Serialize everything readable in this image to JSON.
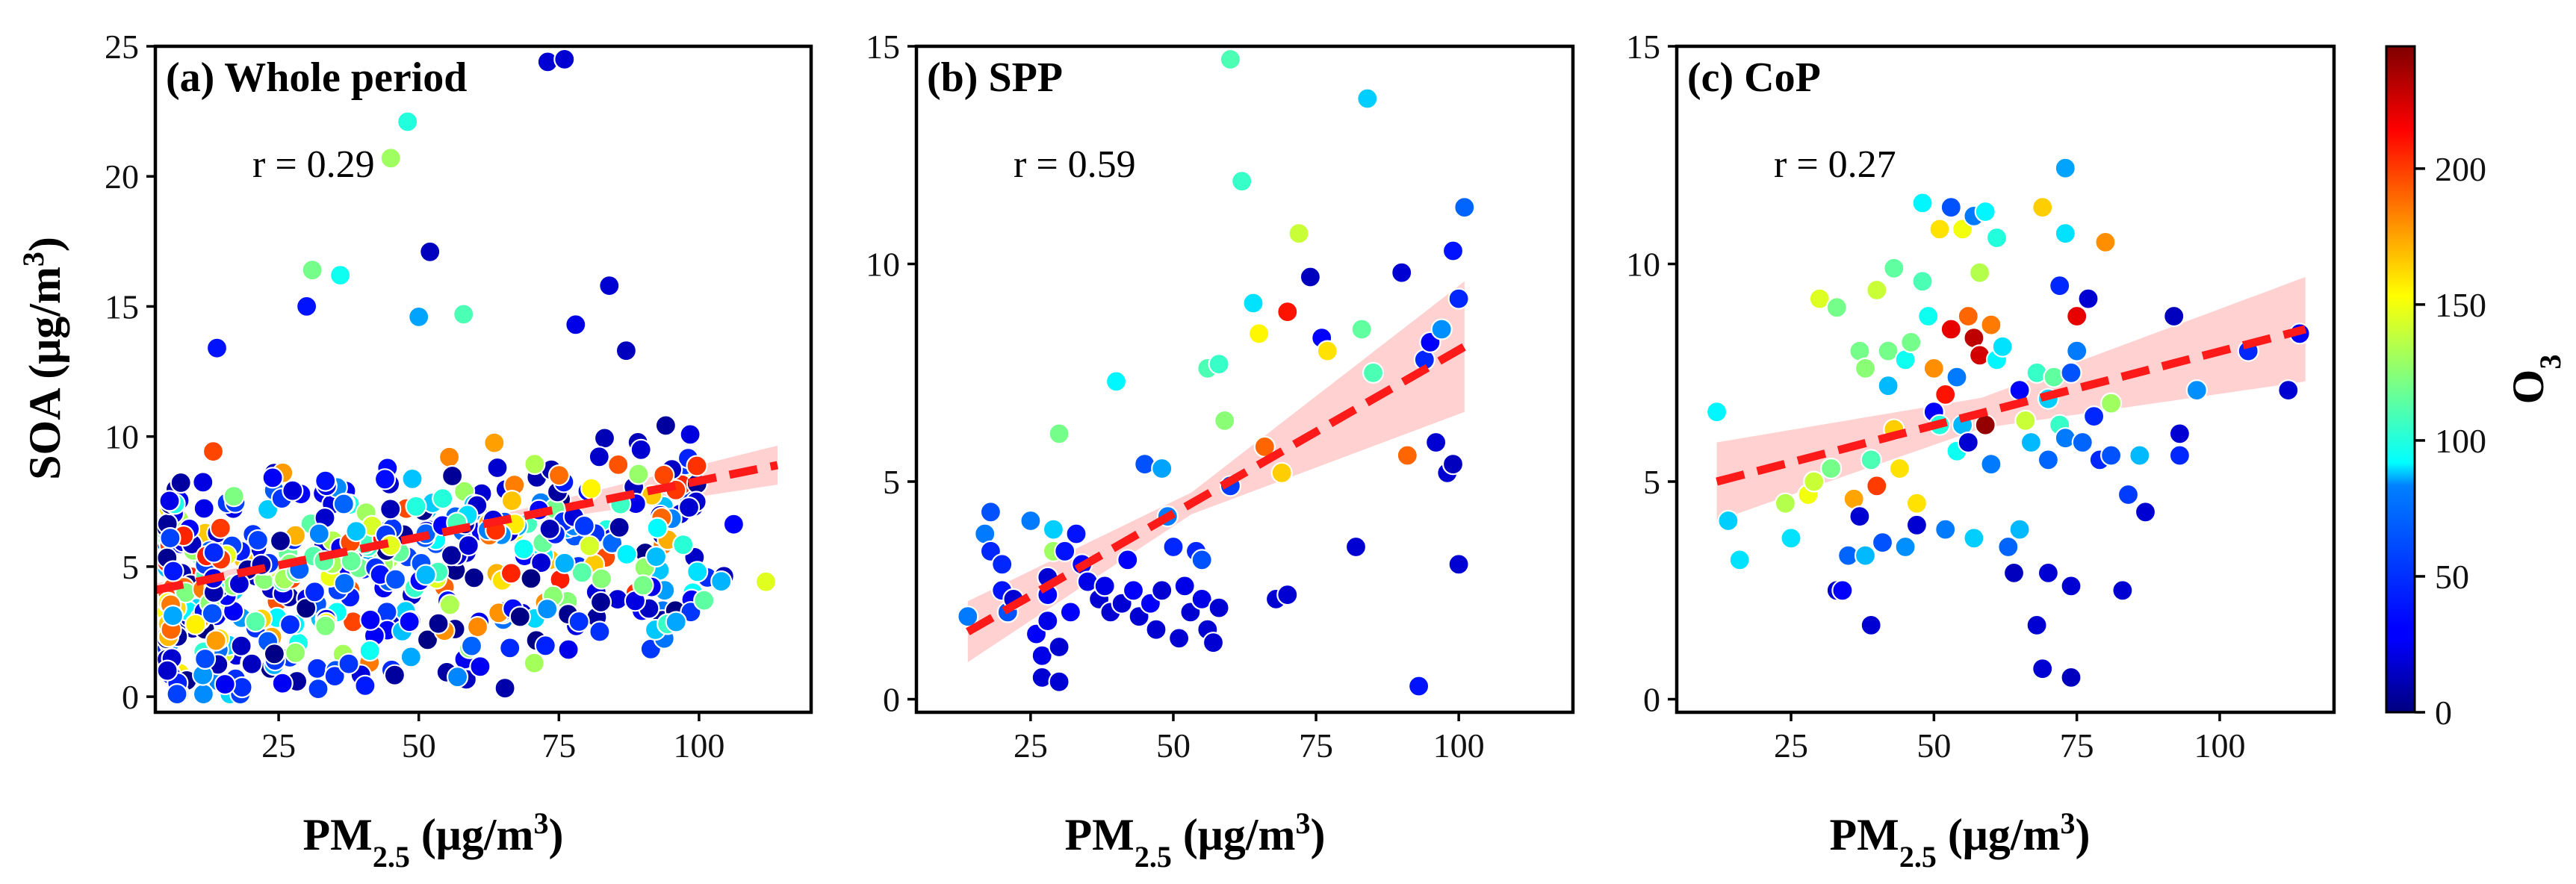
{
  "colors": {
    "regression_line": "#ff1a1a",
    "confidence_band": "#ffb8b8",
    "marker_edge": "#ffffff",
    "axis": "#000000"
  },
  "colorbar": {
    "label": "O",
    "label_sub": "3",
    "min": 0,
    "max": 245,
    "ticks": [
      "0",
      "50",
      "100",
      "150",
      "200"
    ],
    "tick_values": [
      0,
      50,
      100,
      150,
      200
    ],
    "colormap": "jet"
  },
  "axis_labels": {
    "y_main": "SOA (μg/m",
    "y_sup": "3",
    "y_close": ")",
    "x_pm": "PM",
    "x_sub": "2.5",
    "x_unit": " (μg/m",
    "x_sup": "3",
    "x_close": ")"
  },
  "chart_data": [
    {
      "type": "scatter",
      "title": "(a) Whole period",
      "r_label": "r = 0.29",
      "xlim": [
        3,
        120
      ],
      "ylim": [
        -0.6,
        25
      ],
      "xticks": [
        25,
        50,
        75,
        100
      ],
      "yticks": [
        0,
        5,
        10,
        15,
        20,
        25
      ],
      "regression": {
        "x0": 3,
        "y0": 4.1,
        "x1": 114,
        "y1": 8.9,
        "ci_half_start": 0.25,
        "ci_half_mid": 0.12,
        "ci_half_end": 0.75
      },
      "n_points": 520,
      "x_range": [
        5,
        115
      ],
      "outliers": [
        [
          45,
          20.7,
          130
        ],
        [
          48,
          22.1,
          100
        ],
        [
          73,
          24.4,
          20
        ],
        [
          76,
          24.5,
          20
        ],
        [
          52,
          17.1,
          15
        ],
        [
          31,
          16.4,
          120
        ],
        [
          36,
          16.2,
          95
        ],
        [
          30,
          15,
          35
        ],
        [
          58,
          14.7,
          110
        ],
        [
          50,
          14.6,
          70
        ],
        [
          14,
          13.4,
          35
        ],
        [
          78,
          14.3,
          25
        ],
        [
          84,
          15.8,
          20
        ],
        [
          87,
          13.3,
          15
        ]
      ],
      "seed": 11
    },
    {
      "type": "scatter",
      "title": "(b) SPP",
      "r_label": "r = 0.59",
      "xlim": [
        5,
        120
      ],
      "ylim": [
        -0.3,
        15
      ],
      "xticks": [
        25,
        50,
        75,
        100
      ],
      "yticks": [
        0,
        5,
        10,
        15
      ],
      "regression": {
        "x0": 14,
        "y0": 1.55,
        "x1": 101,
        "y1": 8.1,
        "ci_half_start": 0.7,
        "ci_half_mid": 0.25,
        "ci_half_end": 1.5
      },
      "points": [
        [
          14,
          1.9,
          60
        ],
        [
          17,
          3.8,
          60
        ],
        [
          18,
          4.3,
          50
        ],
        [
          18,
          3.4,
          40
        ],
        [
          20,
          3.1,
          40
        ],
        [
          20,
          2.5,
          35
        ],
        [
          21,
          2.0,
          50
        ],
        [
          22,
          2.3,
          20
        ],
        [
          25,
          4.1,
          60
        ],
        [
          26,
          1.5,
          30
        ],
        [
          27,
          1.0,
          25
        ],
        [
          27,
          0.5,
          20
        ],
        [
          28,
          2.8,
          20
        ],
        [
          28,
          2.4,
          30
        ],
        [
          28,
          1.8,
          25
        ],
        [
          29,
          3.9,
          80
        ],
        [
          29,
          3.4,
          130
        ],
        [
          30,
          0.4,
          20
        ],
        [
          30,
          1.2,
          20
        ],
        [
          30,
          6.1,
          120
        ],
        [
          31,
          3.4,
          35
        ],
        [
          32,
          2.0,
          30
        ],
        [
          33,
          3.8,
          35
        ],
        [
          34,
          3.1,
          30
        ],
        [
          35,
          2.7,
          25
        ],
        [
          37,
          2.3,
          20
        ],
        [
          38,
          2.6,
          25
        ],
        [
          39,
          2.0,
          20
        ],
        [
          40,
          7.3,
          90
        ],
        [
          41,
          2.2,
          20
        ],
        [
          42,
          3.2,
          30
        ],
        [
          43,
          2.5,
          30
        ],
        [
          44,
          1.9,
          20
        ],
        [
          45,
          5.4,
          50
        ],
        [
          46,
          2.2,
          30
        ],
        [
          47,
          1.6,
          20
        ],
        [
          48,
          2.5,
          20
        ],
        [
          48,
          5.3,
          70
        ],
        [
          49,
          4.2,
          60
        ],
        [
          50,
          3.5,
          40
        ],
        [
          51,
          1.4,
          20
        ],
        [
          52,
          2.6,
          25
        ],
        [
          53,
          2.0,
          20
        ],
        [
          54,
          3.4,
          40
        ],
        [
          55,
          2.3,
          25
        ],
        [
          55,
          3.2,
          50
        ],
        [
          56,
          1.6,
          20
        ],
        [
          56,
          7.6,
          110
        ],
        [
          57,
          1.3,
          20
        ],
        [
          58,
          7.7,
          105
        ],
        [
          58,
          2.1,
          20
        ],
        [
          59,
          6.4,
          125
        ],
        [
          60,
          14.7,
          110
        ],
        [
          60,
          4.9,
          45
        ],
        [
          62,
          11.9,
          105
        ],
        [
          64,
          9.1,
          85
        ],
        [
          65,
          8.4,
          155
        ],
        [
          66,
          5.8,
          190
        ],
        [
          68,
          2.3,
          20
        ],
        [
          69,
          5.2,
          165
        ],
        [
          70,
          8.9,
          210
        ],
        [
          70,
          2.4,
          20
        ],
        [
          72,
          10.7,
          140
        ],
        [
          74,
          9.7,
          15
        ],
        [
          76,
          8.3,
          30
        ],
        [
          77,
          8.0,
          160
        ],
        [
          82,
          3.5,
          20
        ],
        [
          83,
          8.5,
          115
        ],
        [
          84,
          13.8,
          80
        ],
        [
          85,
          7.5,
          110
        ],
        [
          90,
          9.8,
          20
        ],
        [
          91,
          5.6,
          190
        ],
        [
          93,
          0.3,
          35
        ],
        [
          94,
          7.8,
          40
        ],
        [
          95,
          8.2,
          30
        ],
        [
          96,
          5.9,
          20
        ],
        [
          97,
          8.5,
          65
        ],
        [
          98,
          5.2,
          20
        ],
        [
          99,
          5.4,
          15
        ],
        [
          99,
          10.3,
          35
        ],
        [
          100,
          3.1,
          20
        ],
        [
          100,
          9.2,
          40
        ],
        [
          101,
          11.3,
          55
        ]
      ]
    },
    {
      "type": "scatter",
      "title": "(c) CoP",
      "r_label": "r = 0.27",
      "xlim": [
        5,
        120
      ],
      "ylim": [
        -0.3,
        15
      ],
      "xticks": [
        25,
        50,
        75,
        100
      ],
      "yticks": [
        0,
        5,
        10,
        15
      ],
      "regression": {
        "x0": 12,
        "y0": 5.0,
        "x1": 115,
        "y1": 8.5,
        "ci_half_start": 0.9,
        "ci_half_mid": 0.35,
        "ci_half_end": 1.2
      },
      "points": [
        [
          12,
          6.6,
          90
        ],
        [
          14,
          4.1,
          80
        ],
        [
          16,
          3.2,
          85
        ],
        [
          24,
          4.5,
          135
        ],
        [
          25,
          3.7,
          85
        ],
        [
          28,
          4.7,
          150
        ],
        [
          29,
          5.0,
          140
        ],
        [
          30,
          9.2,
          145
        ],
        [
          32,
          5.3,
          120
        ],
        [
          33,
          9.0,
          120
        ],
        [
          33,
          2.5,
          20
        ],
        [
          34,
          2.5,
          30
        ],
        [
          35,
          3.3,
          55
        ],
        [
          36,
          4.6,
          175
        ],
        [
          37,
          8.0,
          120
        ],
        [
          37,
          4.2,
          20
        ],
        [
          38,
          7.6,
          125
        ],
        [
          38,
          3.3,
          75
        ],
        [
          39,
          5.5,
          110
        ],
        [
          39,
          1.7,
          20
        ],
        [
          40,
          4.9,
          200
        ],
        [
          40,
          9.4,
          140
        ],
        [
          41,
          3.6,
          50
        ],
        [
          42,
          8.0,
          120
        ],
        [
          42,
          7.2,
          75
        ],
        [
          43,
          9.9,
          115
        ],
        [
          43,
          6.2,
          165
        ],
        [
          44,
          5.3,
          160
        ],
        [
          45,
          7.8,
          95
        ],
        [
          45,
          3.5,
          65
        ],
        [
          46,
          8.2,
          120
        ],
        [
          47,
          4.5,
          160
        ],
        [
          47,
          4.0,
          20
        ],
        [
          48,
          9.6,
          110
        ],
        [
          48,
          11.4,
          90
        ],
        [
          49,
          8.8,
          95
        ],
        [
          50,
          7.6,
          180
        ],
        [
          50,
          6.6,
          30
        ],
        [
          51,
          10.8,
          160
        ],
        [
          51,
          6.3,
          100
        ],
        [
          52,
          7.0,
          210
        ],
        [
          52,
          3.9,
          60
        ],
        [
          53,
          11.3,
          50
        ],
        [
          53,
          8.5,
          220
        ],
        [
          54,
          7.4,
          60
        ],
        [
          54,
          5.7,
          95
        ],
        [
          55,
          6.3,
          75
        ],
        [
          55,
          10.8,
          150
        ],
        [
          56,
          8.8,
          190
        ],
        [
          56,
          5.9,
          20
        ],
        [
          57,
          11.1,
          60
        ],
        [
          57,
          8.3,
          230
        ],
        [
          57,
          3.7,
          80
        ],
        [
          58,
          9.8,
          135
        ],
        [
          58,
          7.9,
          225
        ],
        [
          59,
          11.2,
          90
        ],
        [
          59,
          6.3,
          240
        ],
        [
          60,
          8.6,
          185
        ],
        [
          60,
          5.4,
          60
        ],
        [
          61,
          10.6,
          100
        ],
        [
          61,
          7.8,
          90
        ],
        [
          62,
          8.1,
          85
        ],
        [
          63,
          3.5,
          55
        ],
        [
          64,
          2.9,
          15
        ],
        [
          65,
          3.9,
          75
        ],
        [
          65,
          7.1,
          30
        ],
        [
          66,
          6.4,
          140
        ],
        [
          67,
          5.9,
          75
        ],
        [
          68,
          7.5,
          105
        ],
        [
          68,
          1.7,
          20
        ],
        [
          69,
          0.7,
          20
        ],
        [
          69,
          11.3,
          165
        ],
        [
          70,
          6.9,
          80
        ],
        [
          70,
          5.5,
          55
        ],
        [
          70,
          2.9,
          20
        ],
        [
          71,
          7.4,
          115
        ],
        [
          72,
          6.3,
          105
        ],
        [
          72,
          9.5,
          40
        ],
        [
          73,
          12.2,
          70
        ],
        [
          73,
          10.7,
          85
        ],
        [
          73,
          6.0,
          60
        ],
        [
          74,
          7.5,
          50
        ],
        [
          74,
          2.6,
          20
        ],
        [
          74,
          0.5,
          15
        ],
        [
          75,
          8.8,
          220
        ],
        [
          75,
          8.0,
          60
        ],
        [
          76,
          5.9,
          55
        ],
        [
          77,
          9.2,
          20
        ],
        [
          78,
          6.5,
          40
        ],
        [
          79,
          5.5,
          40
        ],
        [
          80,
          10.5,
          180
        ],
        [
          81,
          6.8,
          130
        ],
        [
          81,
          5.6,
          50
        ],
        [
          83,
          2.5,
          20
        ],
        [
          84,
          4.7,
          45
        ],
        [
          86,
          5.6,
          75
        ],
        [
          87,
          4.3,
          20
        ],
        [
          92,
          8.8,
          15
        ],
        [
          93,
          6.1,
          20
        ],
        [
          93,
          5.6,
          40
        ],
        [
          96,
          7.1,
          65
        ],
        [
          105,
          8.0,
          40
        ],
        [
          112,
          7.1,
          20
        ],
        [
          114,
          8.4,
          30
        ]
      ]
    }
  ]
}
